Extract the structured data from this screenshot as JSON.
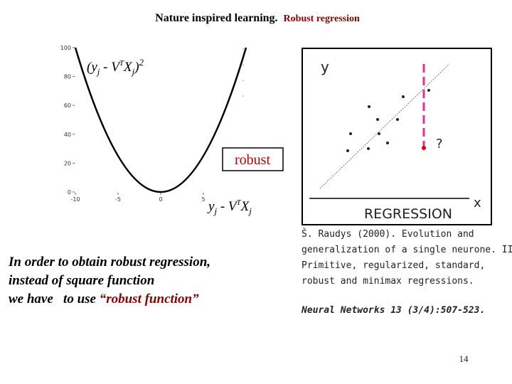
{
  "header": {
    "title": "Nature inspired learning.",
    "subtitle": "Robust regression"
  },
  "plot": {
    "yticks": [
      0,
      20,
      40,
      60,
      80,
      100
    ],
    "xticks": [
      -10,
      -5,
      0,
      5
    ],
    "loss_label": [
      "(y",
      "j",
      " - V",
      "T",
      "X",
      "j",
      ")",
      "2"
    ],
    "robust_label": "robust",
    "x_label": [
      "y",
      "j",
      " - V",
      "T",
      "X",
      "j"
    ]
  },
  "regression_figure": {
    "y_label": "y",
    "x_label": "x",
    "question": "?",
    "caption": "REGRESSION"
  },
  "body": {
    "lines": [
      "In order to obtain robust regression,",
      "instead of square function",
      "we have   to use "
    ],
    "highlight": "“robust function”"
  },
  "citation": {
    "lines": [
      "Š. Raudys (2000). Evolution and",
      "generalization of a single neurone. III.",
      "Primitive, regularized, standard,",
      "robust and minimax regressions."
    ],
    "journal": "Neural Networks 13 (3/4):507-523."
  },
  "page_number": 14
}
